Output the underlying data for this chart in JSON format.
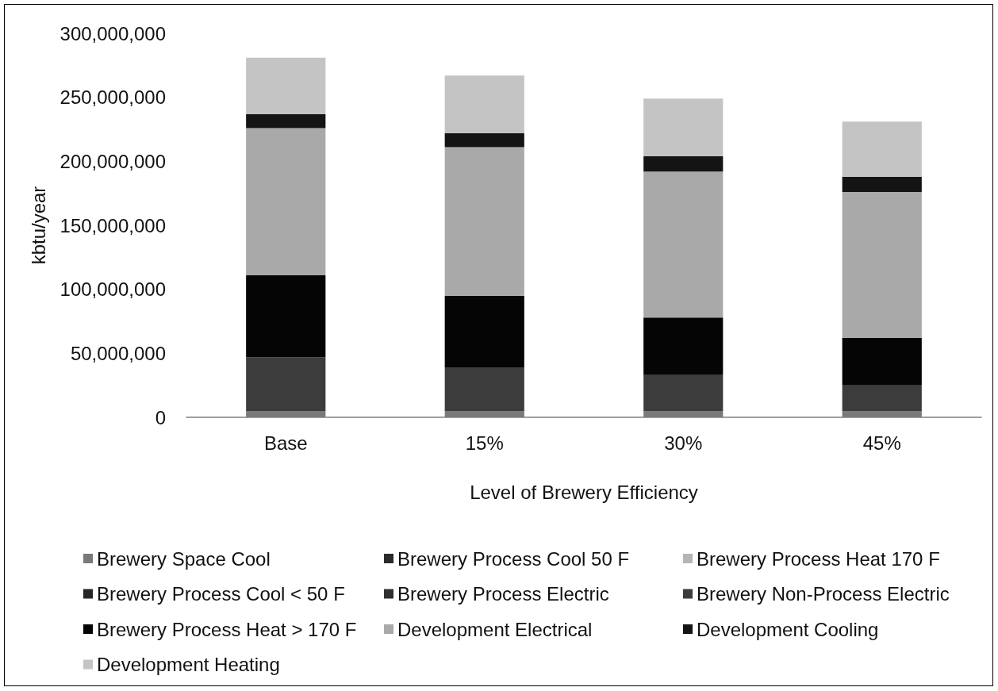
{
  "chart_data": {
    "type": "bar",
    "stacked": true,
    "xlabel": "Level of Brewery Efficiency",
    "ylabel": "kbtu/year",
    "categories": [
      "Base",
      "15%",
      "30%",
      "45%"
    ],
    "series": [
      {
        "name": "Brewery Space Cool",
        "color": "#7a7a7a",
        "values": [
          5000000,
          5000000,
          5000000,
          5000000
        ]
      },
      {
        "name": "Brewery Process Cool 50 F",
        "color": "#2b2b2b",
        "values": [
          null,
          null,
          null,
          null
        ]
      },
      {
        "name": "Brewery Process Heat 170 F",
        "color": "#b5b5b5",
        "values": [
          null,
          null,
          null,
          null
        ]
      },
      {
        "name": "Brewery Process Cool < 50 F",
        "color": "#262626",
        "values": [
          null,
          null,
          null,
          null
        ]
      },
      {
        "name": "Brewery Process Electric",
        "color": "#303030",
        "values": [
          null,
          null,
          null,
          null
        ]
      },
      {
        "name": "Brewery Non-Process Electric",
        "color": "#3c3c3c",
        "values": [
          42000000,
          34000000,
          28000000,
          20000000
        ]
      },
      {
        "name": "Brewery Process Heat > 170 F",
        "color": "#050505",
        "values": [
          64000000,
          56000000,
          45000000,
          37000000
        ]
      },
      {
        "name": "Development Electrical",
        "color": "#a9a9a9",
        "values": [
          115000000,
          116000000,
          114000000,
          114000000
        ]
      },
      {
        "name": "Development Cooling",
        "color": "#141414",
        "values": [
          11000000,
          11000000,
          12000000,
          12000000
        ]
      },
      {
        "name": "Development Heating",
        "color": "#c4c4c4",
        "values": [
          44000000,
          45000000,
          45000000,
          43000000
        ]
      }
    ],
    "ylim": [
      0,
      300000000
    ],
    "yticks": [
      0,
      {
        "value": 50000000,
        "label": "50,000,000"
      },
      {
        "value": 100000000,
        "label": "100,000,000"
      },
      {
        "value": 150000000,
        "label": "150,000,000"
      },
      {
        "value": 200000000,
        "label": "200,000,000"
      },
      {
        "value": 250000000,
        "label": "250,000,000"
      },
      {
        "value": 300000000,
        "label": "300,000,000"
      }
    ],
    "grid": false,
    "legend": "bottom"
  }
}
